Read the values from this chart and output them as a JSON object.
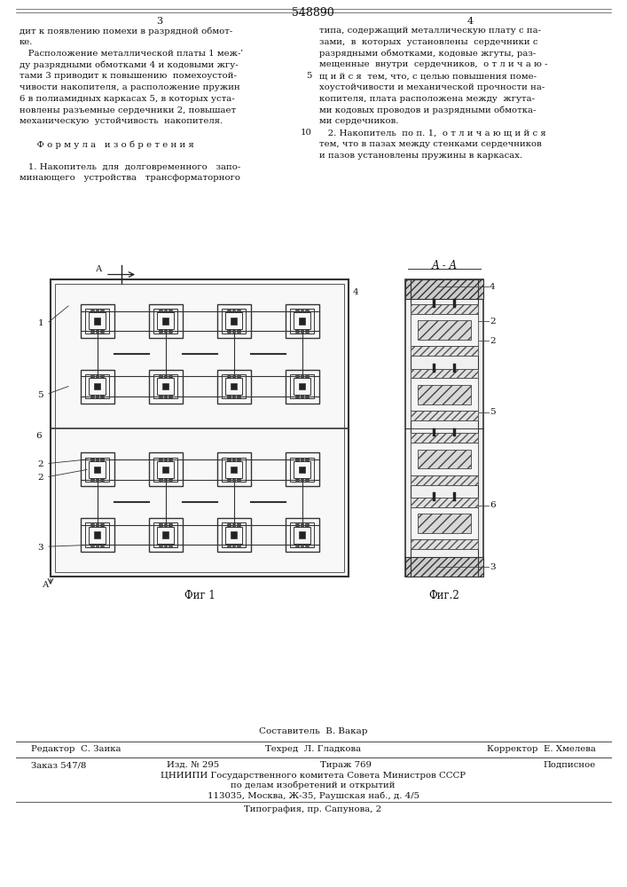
{
  "patent_number": "548890",
  "page_left": "3",
  "page_right": "4",
  "col1": [
    "дит к появлению помехи в разрядной обмот-",
    "ке.",
    "   Расположение металлической платы 1 меж-ʹ",
    "ду разрядными обмотками 4 и кодовыми жгу-",
    "тами 3 приводит к повышению  помехоустой-",
    "чивости накопителя, а расположение пружин",
    "6 в полиамидных каркасах 5, в которых уста-",
    "новлены разъемные сердечники 2, повышает",
    "механическую  устойчивость  накопителя.",
    "",
    "      Ф о р м у л а   и з о б р е т е н и я",
    "",
    "   1. Накопитель  для  долговременного   запо-",
    "минающего   устройства   трансформаторного"
  ],
  "col2": [
    [
      "",
      "типа, содержащий металлическую плату с па-"
    ],
    [
      "",
      "зами,  в  которых  установлены  сердечники с"
    ],
    [
      "",
      "разрядными обмотками, кодовые жгуты, раз-"
    ],
    [
      "",
      "мещенные  внутри  сердечников,  о т л и ч а ю -"
    ],
    [
      "5",
      "щ и й с я  тем, что, с целью повышения поме-"
    ],
    [
      "",
      "хоустойчивости и механической прочности на-"
    ],
    [
      "",
      "копителя, плата расположена между  жгута-"
    ],
    [
      "",
      "ми кодовых проводов и разрядными обмотка-"
    ],
    [
      "",
      "ми сердечников."
    ],
    [
      "10",
      "   2. Накопитель  по п. 1,  о т л и ч а ю щ и й с я"
    ],
    [
      "",
      "тем, что в пазах между стенками сердечников"
    ],
    [
      "",
      "и пазов установлены пружины в каркасах."
    ]
  ],
  "fig1_caption": "Фиг 1",
  "fig2_caption": "Фиг.2",
  "aa_label": "А - А",
  "footer_composer": "Составитель  В. Вакар",
  "footer_editor": "Редактор  С. Заика",
  "footer_techred": "Техред  Л. Гладкова",
  "footer_corrector": "Корректор  Е. Хмелева",
  "footer_order": "Заказ 547/8",
  "footer_izd": "Изд. № 295",
  "footer_tirazh": "Тираж 769",
  "footer_podpisnoe": "Подписное",
  "footer_tsnipi": "ЦНИИПИ Государственного комитета Совета Министров СССР",
  "footer_delam": "по делам изобретений и открытий",
  "footer_address": "113035, Москва, Ж-35, Раушская наб., д. 4/5",
  "footer_typografia": "Типография, пр. Сапунова, 2",
  "bg": "#ffffff",
  "fg": "#111111"
}
